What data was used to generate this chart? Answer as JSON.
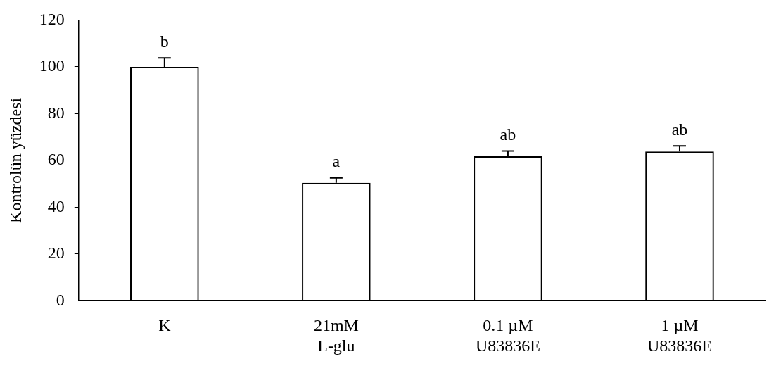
{
  "chart_data": {
    "type": "bar",
    "ylabel": "Kontrolün yüzdesi",
    "categories": [
      "K",
      "21mM\nL-glu",
      "0.1 µM\nU83836E",
      "1 µM\nU83836E"
    ],
    "values": [
      100,
      50.4,
      61.8,
      63.8
    ],
    "errors": [
      3.8,
      2.1,
      2.2,
      2.4
    ],
    "color": "#000000",
    "ylim": [
      0,
      120
    ],
    "yticks": [
      0,
      20,
      40,
      60,
      80,
      100,
      120
    ],
    "grid": false,
    "annotations": [
      {
        "text": "b",
        "x": "K",
        "y": 103.8
      },
      {
        "text": "a",
        "x": "21mM\nL-glu",
        "y": 52.5
      },
      {
        "text": "ab",
        "x": "0.1 µM\nU83836E",
        "y": 64
      },
      {
        "text": "ab",
        "x": "1 µM\nU83836E",
        "y": 66.2
      }
    ]
  }
}
